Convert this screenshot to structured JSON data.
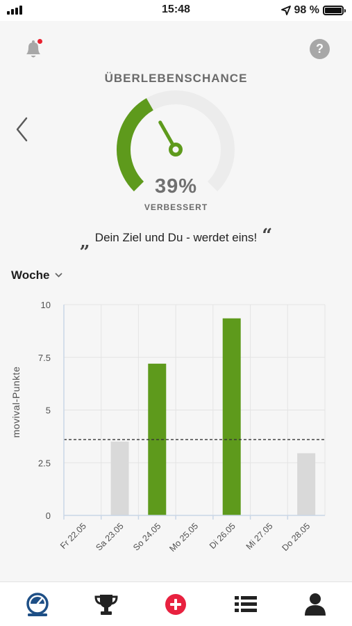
{
  "status_bar": {
    "time": "15:48",
    "battery_text": "98 %",
    "battery_level": 0.98,
    "icons": [
      "signal-icon",
      "location-arrow-icon",
      "battery-icon"
    ]
  },
  "header": {
    "icons": [
      "notification-bell-icon",
      "help-icon",
      "back-chevron-icon"
    ],
    "help_label": "?",
    "notification_badge_color": "#e8212f"
  },
  "gauge": {
    "title": "ÜBERLEBENSCHANCE",
    "percent_text": "39%",
    "value": 0.39,
    "status": "VERBESSERT",
    "fill_color": "#5e9a1c",
    "track_color": "#ececec"
  },
  "quote": {
    "open_mark": "„",
    "text": "Dein Ziel und Du - werdet eins!",
    "close_mark": "“"
  },
  "period_select": {
    "label": "Woche"
  },
  "chart_data": {
    "type": "bar",
    "ylabel": "movival-Punkte",
    "ylim": [
      0,
      10
    ],
    "yticks": [
      0,
      2.5,
      5,
      7.5,
      10
    ],
    "ytick_labels": [
      "0",
      "2.5",
      "5",
      "7.5",
      "10"
    ],
    "categories": [
      "Fr 22.05",
      "Sa 23.05",
      "So 24.05",
      "Mo 25.05",
      "Di 26.05",
      "Mi 27.05",
      "Do 28.05"
    ],
    "values": [
      0,
      3.5,
      7.2,
      0,
      9.35,
      0,
      2.95
    ],
    "bar_colors": [
      "#d9d9d9",
      "#d9d9d9",
      "#5e9a1c",
      "#d9d9d9",
      "#5e9a1c",
      "#d9d9d9",
      "#d9d9d9"
    ],
    "reference_line": 3.6,
    "grid": true
  },
  "bottom_nav": {
    "items": [
      "dashboard-gauge-icon",
      "trophy-icon",
      "add-circle-icon",
      "list-icon",
      "profile-icon"
    ],
    "active_color": "#1e4f86",
    "accent_color": "#e8213f"
  }
}
